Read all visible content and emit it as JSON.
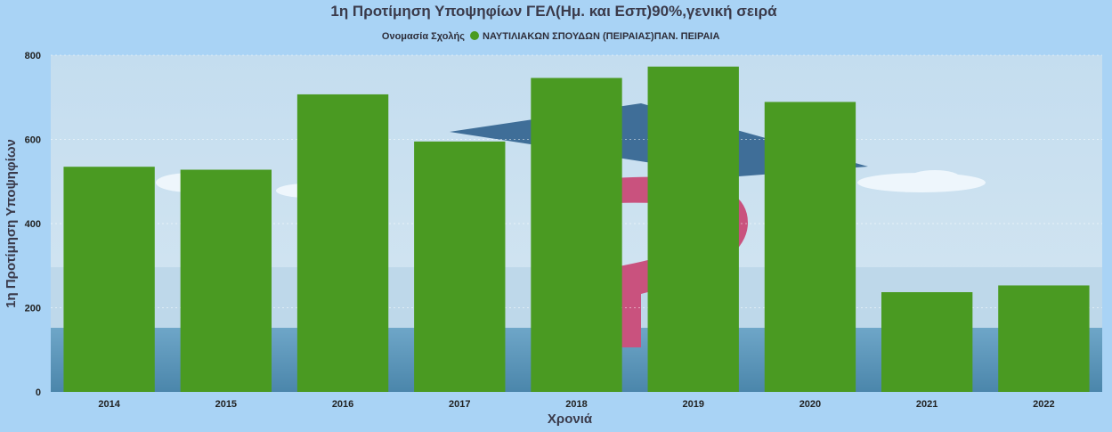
{
  "chart_data": {
    "type": "bar",
    "title": "1η Προτίμηση Υποψηφίων ΓΕΛ(Ημ. και Εσπ)90%,γενική σειρά",
    "legend_title": "Ονομασία Σχολής",
    "legend_position": "top-center",
    "xlabel": "Χρονιά",
    "ylabel": "1η Προτίμηση Υποψηφίων",
    "categories": [
      "2014",
      "2015",
      "2016",
      "2017",
      "2018",
      "2019",
      "2020",
      "2021",
      "2022"
    ],
    "series": [
      {
        "name": "ΝΑΥΤΙΛΙΑΚΩΝ ΣΠΟΥΔΩΝ (ΠΕΙΡΑΙΑΣ)ΠΑΝ. ΠΕΙΡΑΙΑ",
        "color": "#4a9a22",
        "values": [
          535,
          528,
          707,
          595,
          746,
          773,
          689,
          237,
          253
        ]
      }
    ],
    "ylim": [
      0,
      800
    ],
    "yticks": [
      0,
      200,
      400,
      600,
      800
    ],
    "grid": true
  }
}
